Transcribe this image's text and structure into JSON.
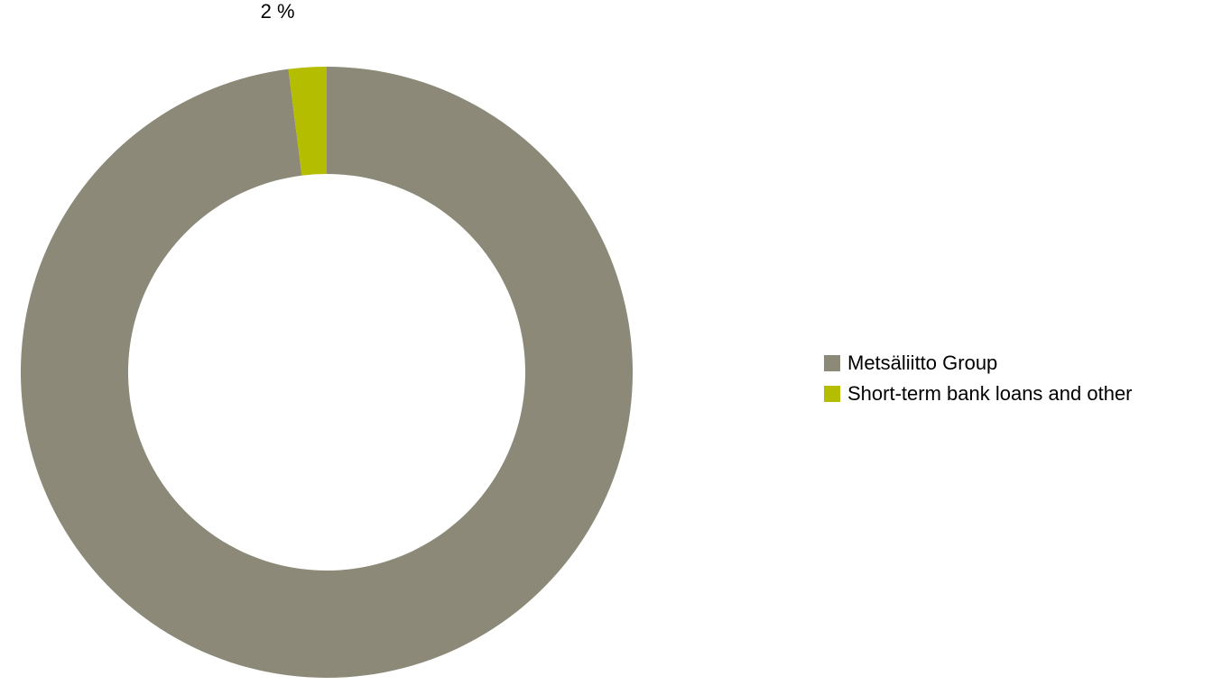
{
  "chart_data": {
    "type": "pie",
    "donut": true,
    "categories": [
      "Metsäliitto Group",
      "Short-term bank loans and other"
    ],
    "values": [
      98,
      2
    ],
    "colors": [
      "#8c8978",
      "#b5bd00"
    ],
    "data_labels": [
      "",
      "2 %"
    ],
    "legend_position": "right"
  }
}
